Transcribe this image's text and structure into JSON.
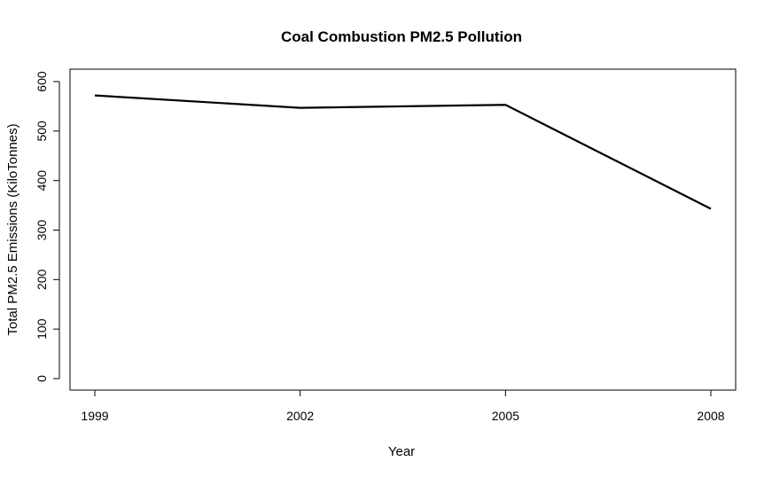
{
  "chart_data": {
    "type": "line",
    "title": "Coal Combustion PM2.5 Pollution",
    "xlabel": "Year",
    "ylabel": "Total PM2.5 Emissions (KiloTonnes)",
    "x": [
      1999,
      2002,
      2005,
      2008
    ],
    "xtick_labels": [
      "1999",
      "2002",
      "2005",
      "2008"
    ],
    "yticks": [
      0,
      100,
      200,
      300,
      400,
      500,
      600
    ],
    "ytick_labels": [
      "0",
      "100",
      "200",
      "300",
      "400",
      "500",
      "600"
    ],
    "ylim": [
      0,
      600
    ],
    "xlim": [
      1999,
      2008
    ],
    "grid": false,
    "legend": "none",
    "series": [
      {
        "values": [
          572,
          547,
          553,
          343
        ],
        "color": "#000000"
      }
    ]
  }
}
